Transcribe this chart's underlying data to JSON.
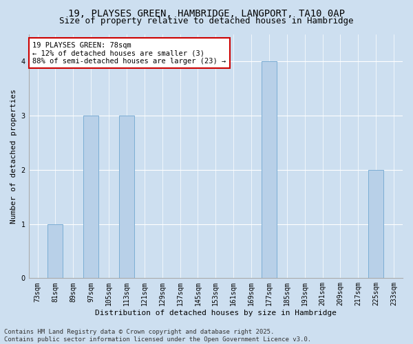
{
  "title1": "19, PLAYSES GREEN, HAMBRIDGE, LANGPORT, TA10 0AP",
  "title2": "Size of property relative to detached houses in Hambridge",
  "xlabel": "Distribution of detached houses by size in Hambridge",
  "ylabel": "Number of detached properties",
  "categories": [
    "73sqm",
    "81sqm",
    "89sqm",
    "97sqm",
    "105sqm",
    "113sqm",
    "121sqm",
    "129sqm",
    "137sqm",
    "145sqm",
    "153sqm",
    "161sqm",
    "169sqm",
    "177sqm",
    "185sqm",
    "193sqm",
    "201sqm",
    "209sqm",
    "217sqm",
    "225sqm",
    "233sqm"
  ],
  "values": [
    0,
    1,
    0,
    3,
    0,
    3,
    0,
    0,
    0,
    0,
    0,
    0,
    0,
    4,
    0,
    0,
    0,
    0,
    0,
    2,
    0
  ],
  "bar_color": "#b8d0e8",
  "bar_edge_color": "#7aadd4",
  "annotation_text": "19 PLAYSES GREEN: 78sqm\n← 12% of detached houses are smaller (3)\n88% of semi-detached houses are larger (23) →",
  "annotation_box_facecolor": "#ffffff",
  "annotation_border_color": "#cc0000",
  "ylim_max": 4.5,
  "yticks": [
    0,
    1,
    2,
    3,
    4
  ],
  "background_color": "#cddff0",
  "plot_background_color": "#cddff0",
  "grid_color": "#ffffff",
  "footer_line1": "Contains HM Land Registry data © Crown copyright and database right 2025.",
  "footer_line2": "Contains public sector information licensed under the Open Government Licence v3.0.",
  "title_fontsize": 10,
  "subtitle_fontsize": 9,
  "axis_label_fontsize": 8,
  "tick_fontsize": 7,
  "annotation_fontsize": 7.5,
  "footer_fontsize": 6.5
}
